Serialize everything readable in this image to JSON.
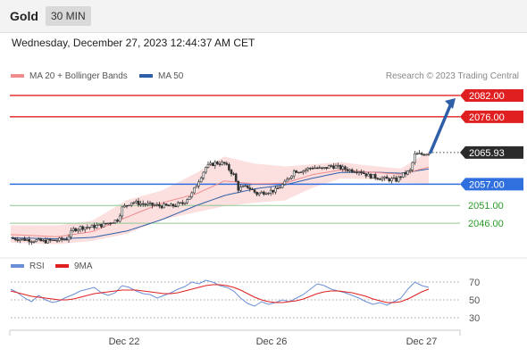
{
  "header": {
    "instrument": "Gold",
    "timeframe": "30 MIN"
  },
  "datetime": "Wednesday, December 27, 2023 12:44:37 AM CET",
  "legend": [
    {
      "label": "MA 20 + Bollinger Bands",
      "color": "#f08c8c"
    },
    {
      "label": "MA 50",
      "color": "#2f5fa8"
    }
  ],
  "credit": "Research © 2023 Trading Central",
  "rsi_legend": [
    {
      "label": "RSI",
      "color": "#6b8fd6"
    },
    {
      "label": "9MA",
      "color": "#e02020"
    }
  ],
  "chart_data": [
    {
      "type": "candlestick",
      "ylim": [
        2040.5,
        2084
      ],
      "current_price": {
        "label": "2065.93",
        "value": 2065.93
      },
      "levels": [
        {
          "label": "2082.00",
          "value": 2082.0,
          "kind": "resistance",
          "color": "#e02020"
        },
        {
          "label": "2076.00",
          "value": 2076.0,
          "kind": "resistance",
          "color": "#e02020"
        },
        {
          "label": "2057.00",
          "value": 2057.0,
          "kind": "pivot",
          "color": "#2f6fde"
        },
        {
          "label": "2051.00",
          "value": 2051.0,
          "kind": "support",
          "color": "#2a9a2a"
        },
        {
          "label": "2046.00",
          "value": 2046.0,
          "kind": "support",
          "color": "#2a9a2a"
        }
      ],
      "x_ticks": [
        "Dec 22",
        "Dec 26",
        "Dec 27"
      ],
      "path": [
        [
          0,
          2041.8
        ],
        [
          8,
          2041.3
        ],
        [
          14,
          2040.9
        ],
        [
          20,
          2041.2
        ],
        [
          24,
          2041.6
        ],
        [
          27,
          2044.2
        ],
        [
          30,
          2044.8
        ],
        [
          35,
          2045.0
        ],
        [
          40,
          2045.6
        ],
        [
          46,
          2047.0
        ],
        [
          48,
          2050.3
        ],
        [
          52,
          2052.0
        ],
        [
          58,
          2051.3
        ],
        [
          64,
          2050.9
        ],
        [
          69,
          2050.8
        ],
        [
          74,
          2051.6
        ],
        [
          78,
          2054.3
        ],
        [
          81,
          2058.1
        ],
        [
          84,
          2061.8
        ],
        [
          88,
          2063.0
        ],
        [
          92,
          2062.8
        ],
        [
          96,
          2059.6
        ],
        [
          98,
          2055.7
        ],
        [
          102,
          2056.3
        ],
        [
          106,
          2054.3
        ],
        [
          110,
          2054.9
        ],
        [
          114,
          2055.3
        ],
        [
          118,
          2057.3
        ],
        [
          122,
          2060.7
        ],
        [
          126,
          2060.9
        ],
        [
          130,
          2061.8
        ],
        [
          134,
          2061.2
        ],
        [
          138,
          2062.2
        ],
        [
          142,
          2061.6
        ],
        [
          146,
          2061.0
        ],
        [
          150,
          2060.8
        ],
        [
          154,
          2059.4
        ],
        [
          158,
          2058.9
        ],
        [
          162,
          2058.4
        ],
        [
          166,
          2058.2
        ],
        [
          168,
          2059.3
        ],
        [
          172,
          2060.8
        ],
        [
          174,
          2065.3
        ],
        [
          177,
          2065.4
        ],
        [
          180,
          2065.9
        ]
      ],
      "ma20": [
        [
          0,
          2042.8
        ],
        [
          20,
          2042.2
        ],
        [
          35,
          2043.6
        ],
        [
          50,
          2047.7
        ],
        [
          65,
          2051.7
        ],
        [
          80,
          2054.3
        ],
        [
          92,
          2057.9
        ],
        [
          105,
          2057.1
        ],
        [
          118,
          2057.3
        ],
        [
          130,
          2059.7
        ],
        [
          142,
          2061.0
        ],
        [
          155,
          2060.4
        ],
        [
          168,
          2059.8
        ],
        [
          180,
          2061.8
        ]
      ],
      "ma50": [
        [
          0,
          2041.9
        ],
        [
          20,
          2041.6
        ],
        [
          35,
          2042.0
        ],
        [
          50,
          2043.8
        ],
        [
          65,
          2047.0
        ],
        [
          80,
          2051.0
        ],
        [
          92,
          2053.8
        ],
        [
          105,
          2055.7
        ],
        [
          118,
          2056.8
        ],
        [
          130,
          2058.7
        ],
        [
          142,
          2060.3
        ],
        [
          155,
          2060.4
        ],
        [
          168,
          2060.1
        ],
        [
          180,
          2061.3
        ]
      ],
      "bb_upper": [
        [
          0,
          2045.4
        ],
        [
          20,
          2045.4
        ],
        [
          35,
          2046.7
        ],
        [
          50,
          2052.5
        ],
        [
          65,
          2055.2
        ],
        [
          80,
          2060.2
        ],
        [
          92,
          2064.8
        ],
        [
          105,
          2062.8
        ],
        [
          118,
          2062.0
        ],
        [
          130,
          2062.6
        ],
        [
          142,
          2063.2
        ],
        [
          155,
          2062.2
        ],
        [
          168,
          2061.4
        ],
        [
          180,
          2066.2
        ]
      ],
      "bb_lower": [
        [
          0,
          2040.5
        ],
        [
          20,
          2040.1
        ],
        [
          35,
          2041.0
        ],
        [
          50,
          2043.0
        ],
        [
          65,
          2047.0
        ],
        [
          80,
          2049.1
        ],
        [
          92,
          2050.8
        ],
        [
          105,
          2051.8
        ],
        [
          118,
          2052.4
        ],
        [
          130,
          2056.0
        ],
        [
          142,
          2058.6
        ],
        [
          155,
          2058.4
        ],
        [
          168,
          2057.4
        ],
        [
          180,
          2057.2
        ]
      ],
      "projection": {
        "from": 2066.0,
        "to": 2082.0
      }
    },
    {
      "type": "line",
      "title": "RSI",
      "ylim": [
        20,
        80
      ],
      "y_ticks": [
        70,
        50,
        30
      ],
      "series": [
        {
          "name": "RSI",
          "values": [
            62,
            58,
            52,
            48,
            55,
            50,
            47,
            49,
            53,
            56,
            60,
            62,
            64,
            58,
            55,
            58,
            66,
            64,
            60,
            57,
            56,
            52,
            55,
            58,
            62,
            65,
            70,
            68,
            72,
            70,
            66,
            64,
            60,
            52,
            46,
            43,
            48,
            45,
            47,
            50,
            48,
            52,
            56,
            62,
            68,
            66,
            62,
            60,
            58,
            55,
            52,
            48,
            45,
            47,
            44,
            48,
            52,
            62,
            70,
            66,
            64
          ]
        },
        {
          "name": "9MA",
          "values": [
            60,
            58,
            56,
            54,
            53,
            52,
            51,
            50,
            50,
            51,
            53,
            55,
            57,
            58,
            59,
            60,
            61,
            61,
            61,
            60,
            59,
            58,
            57,
            57,
            58,
            60,
            62,
            64,
            66,
            67,
            67,
            66,
            64,
            61,
            57,
            53,
            50,
            48,
            47,
            47,
            48,
            49,
            51,
            54,
            57,
            59,
            60,
            60,
            59,
            58,
            56,
            54,
            51,
            49,
            47,
            47,
            48,
            51,
            55,
            59,
            62
          ]
        }
      ]
    }
  ]
}
